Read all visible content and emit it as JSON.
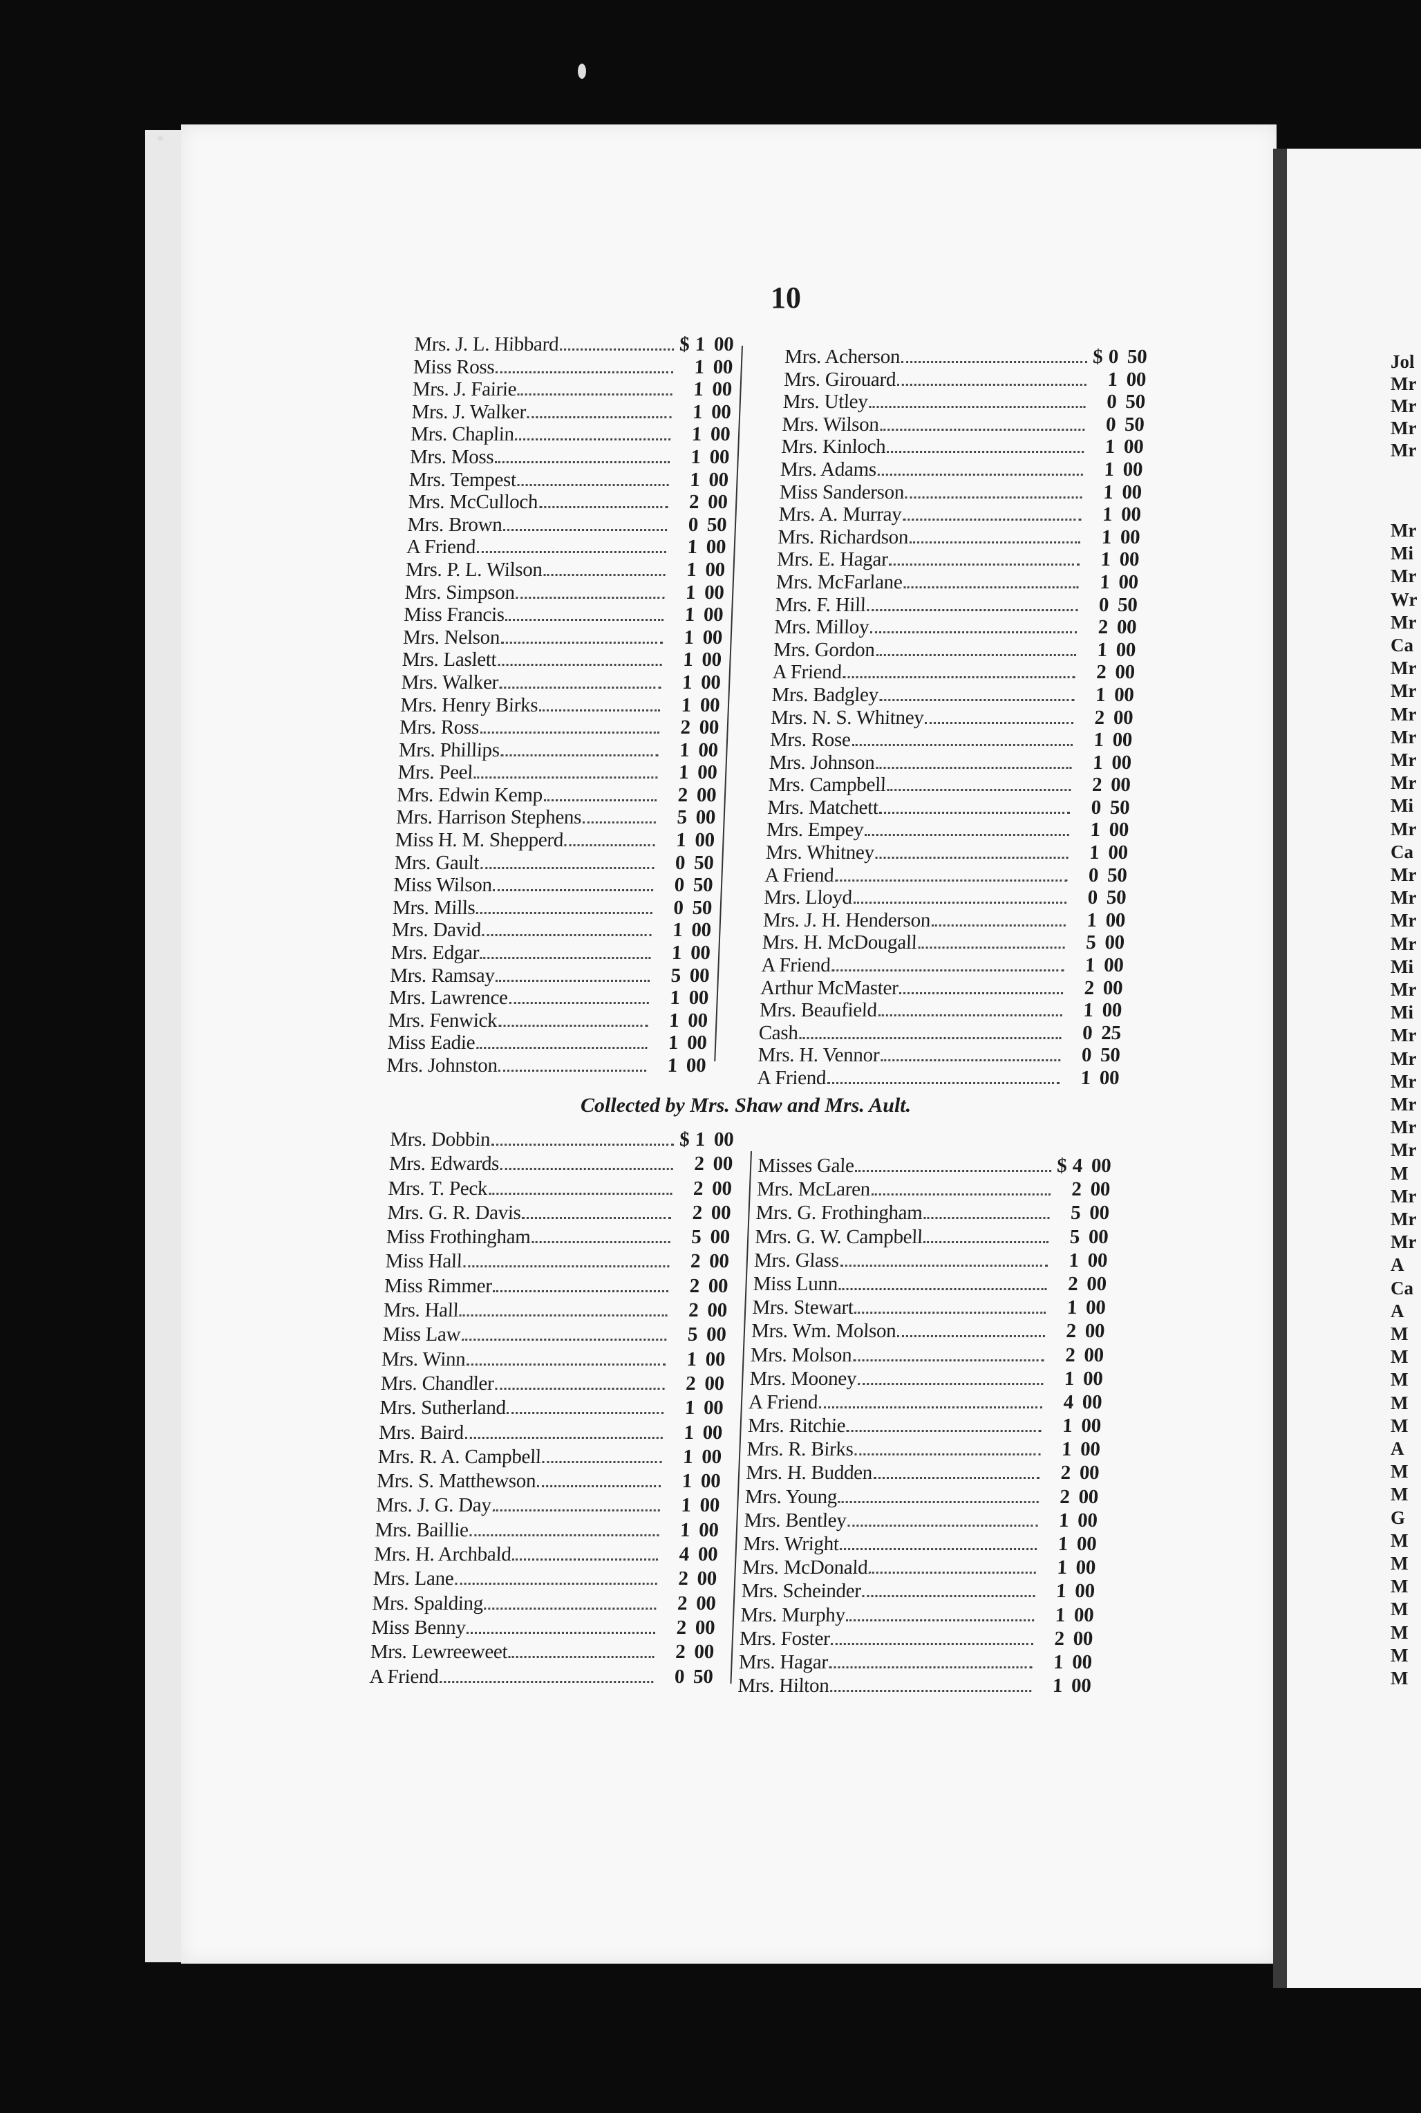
{
  "page_number": "10",
  "section1": {
    "left": [
      {
        "name": "Mrs. J. L. Hibbard",
        "cur": "$",
        "amount": "1 00"
      },
      {
        "name": "Miss Ross",
        "amount": "1 00"
      },
      {
        "name": "Mrs. J. Fairie",
        "amount": "1 00"
      },
      {
        "name": "Mrs. J. Walker",
        "amount": "1 00"
      },
      {
        "name": "Mrs. Chaplin",
        "amount": "1 00"
      },
      {
        "name": "Mrs. Moss",
        "amount": "1 00"
      },
      {
        "name": "Mrs. Tempest",
        "amount": "1 00"
      },
      {
        "name": "Mrs. McCulloch",
        "amount": "2 00"
      },
      {
        "name": "Mrs. Brown",
        "amount": "0 50"
      },
      {
        "name": "A Friend",
        "amount": "1 00"
      },
      {
        "name": "Mrs. P. L. Wilson",
        "amount": "1 00"
      },
      {
        "name": "Mrs. Simpson",
        "amount": "1 00"
      },
      {
        "name": "Miss Francis",
        "amount": "1 00"
      },
      {
        "name": "Mrs. Nelson",
        "amount": "1 00"
      },
      {
        "name": "Mrs. Laslett",
        "amount": "1 00"
      },
      {
        "name": "Mrs. Walker",
        "amount": "1 00"
      },
      {
        "name": "Mrs. Henry Birks",
        "amount": "1 00"
      },
      {
        "name": "Mrs. Ross",
        "amount": "2 00"
      },
      {
        "name": "Mrs. Phillips",
        "amount": "1 00"
      },
      {
        "name": "Mrs. Peel",
        "amount": "1 00"
      },
      {
        "name": "Mrs. Edwin Kemp",
        "amount": "2 00"
      },
      {
        "name": "Mrs. Harrison Stephens",
        "amount": "5 00"
      },
      {
        "name": "Miss H. M. Shepperd",
        "amount": "1 00"
      },
      {
        "name": "Mrs. Gault",
        "amount": "0 50"
      },
      {
        "name": "Miss Wilson",
        "amount": "0 50"
      },
      {
        "name": "Mrs. Mills",
        "amount": "0 50"
      },
      {
        "name": "Mrs. David",
        "amount": "1 00"
      },
      {
        "name": "Mrs. Edgar",
        "amount": "1 00"
      },
      {
        "name": "Mrs. Ramsay",
        "amount": "5 00"
      },
      {
        "name": "Mrs. Lawrence",
        "amount": "1 00"
      },
      {
        "name": "Mrs. Fenwick",
        "amount": "1 00"
      },
      {
        "name": "Miss Eadie",
        "amount": "1 00"
      },
      {
        "name": "Mrs. Johnston",
        "amount": "1 00"
      }
    ],
    "right": [
      {
        "name": "Mrs. Acherson",
        "cur": "$",
        "amount": "0 50"
      },
      {
        "name": "Mrs. Girouard",
        "amount": "1 00"
      },
      {
        "name": "Mrs. Utley",
        "amount": "0 50"
      },
      {
        "name": "Mrs. Wilson",
        "amount": "0 50"
      },
      {
        "name": "Mrs. Kinloch",
        "amount": "1 00"
      },
      {
        "name": "Mrs. Adams",
        "amount": "1 00"
      },
      {
        "name": "Miss Sanderson",
        "amount": "1 00"
      },
      {
        "name": "Mrs. A. Murray",
        "amount": "1 00"
      },
      {
        "name": "Mrs. Richardson",
        "amount": "1 00"
      },
      {
        "name": "Mrs. E. Hagar",
        "amount": "1 00"
      },
      {
        "name": "Mrs. McFarlane",
        "amount": "1 00"
      },
      {
        "name": "Mrs. F. Hill",
        "amount": "0 50"
      },
      {
        "name": "Mrs. Milloy",
        "amount": "2 00"
      },
      {
        "name": "Mrs. Gordon",
        "amount": "1 00"
      },
      {
        "name": "A Friend",
        "amount": "2 00"
      },
      {
        "name": "Mrs. Badgley",
        "amount": "1 00"
      },
      {
        "name": "Mrs. N. S. Whitney",
        "amount": "2 00"
      },
      {
        "name": "Mrs. Rose",
        "amount": "1 00"
      },
      {
        "name": "Mrs. Johnson",
        "amount": "1 00"
      },
      {
        "name": "Mrs. Campbell",
        "amount": "2 00"
      },
      {
        "name": "Mrs. Matchett",
        "amount": "0 50"
      },
      {
        "name": "Mrs. Empey",
        "amount": "1 00"
      },
      {
        "name": "Mrs. Whitney",
        "amount": "1 00"
      },
      {
        "name": "A Friend",
        "amount": "0 50"
      },
      {
        "name": "Mrs. Lloyd",
        "amount": "0 50"
      },
      {
        "name": "Mrs. J. H. Henderson",
        "amount": "1 00"
      },
      {
        "name": "Mrs. H. McDougall",
        "amount": "5 00"
      },
      {
        "name": "A Friend",
        "amount": "1 00"
      },
      {
        "name": "Arthur McMaster",
        "amount": "2 00"
      },
      {
        "name": "Mrs. Beaufield",
        "amount": "1 00"
      },
      {
        "name": "Cash",
        "amount": "0 25"
      },
      {
        "name": "Mrs. H. Vennor",
        "amount": "0 50"
      },
      {
        "name": "A Friend",
        "amount": "1 00"
      }
    ]
  },
  "section2": {
    "heading": "Collected by Mrs. Shaw and Mrs. Ault.",
    "left": [
      {
        "name": "Mrs. Dobbin",
        "cur": "$",
        "amount": "1 00"
      },
      {
        "name": "Mrs. Edwards",
        "amount": "2 00"
      },
      {
        "name": "Mrs. T. Peck",
        "amount": "2 00"
      },
      {
        "name": "Mrs. G. R. Davis",
        "amount": "2 00"
      },
      {
        "name": "Miss Frothingham",
        "amount": "5 00"
      },
      {
        "name": "Miss Hall",
        "amount": "2 00"
      },
      {
        "name": "Miss Rimmer",
        "amount": "2 00"
      },
      {
        "name": "Mrs. Hall",
        "amount": "2 00"
      },
      {
        "name": "Miss Law",
        "amount": "5 00"
      },
      {
        "name": "Mrs. Winn",
        "amount": "1 00"
      },
      {
        "name": "Mrs. Chandler",
        "amount": "2 00"
      },
      {
        "name": "Mrs. Sutherland",
        "amount": "1 00"
      },
      {
        "name": "Mrs. Baird",
        "amount": "1 00"
      },
      {
        "name": "Mrs. R. A. Campbell",
        "amount": "1 00"
      },
      {
        "name": "Mrs. S. Matthewson",
        "amount": "1 00"
      },
      {
        "name": "Mrs. J. G. Day",
        "amount": "1 00"
      },
      {
        "name": "Mrs. Baillie",
        "amount": "1 00"
      },
      {
        "name": "Mrs. H. Archbald",
        "amount": "4 00"
      },
      {
        "name": "Mrs. Lane",
        "amount": "2 00"
      },
      {
        "name": "Mrs. Spalding",
        "amount": "2 00"
      },
      {
        "name": "Miss Benny",
        "amount": "2 00"
      },
      {
        "name": "Mrs. Lewreeweet",
        "amount": "2 00"
      },
      {
        "name": "A Friend",
        "amount": "0 50"
      }
    ],
    "right": [
      {
        "name": "Misses Gale",
        "cur": "$",
        "amount": "4 00"
      },
      {
        "name": "Mrs. McLaren",
        "amount": "2 00"
      },
      {
        "name": "Mrs. G. Frothingham",
        "amount": "5 00"
      },
      {
        "name": "Mrs. G. W. Campbell",
        "amount": "5 00"
      },
      {
        "name": "Mrs. Glass",
        "amount": "1 00"
      },
      {
        "name": "Miss Lunn",
        "amount": "2 00"
      },
      {
        "name": "Mrs. Stewart",
        "amount": "1 00"
      },
      {
        "name": "Mrs. Wm. Molson",
        "amount": "2 00"
      },
      {
        "name": "Mrs. Molson",
        "amount": "2 00"
      },
      {
        "name": "Mrs. Mooney",
        "amount": "1 00"
      },
      {
        "name": "A Friend",
        "amount": "4 00"
      },
      {
        "name": "Mrs. Ritchie",
        "amount": "1 00"
      },
      {
        "name": "Mrs. R. Birks",
        "amount": "1 00"
      },
      {
        "name": "Mrs. H. Budden",
        "amount": "2 00"
      },
      {
        "name": "Mrs. Young",
        "amount": "2 00"
      },
      {
        "name": "Mrs. Bentley",
        "amount": "1 00"
      },
      {
        "name": "Mrs. Wright",
        "amount": "1 00"
      },
      {
        "name": "Mrs. McDonald",
        "amount": "1 00"
      },
      {
        "name": "Mrs. Scheinder",
        "amount": "1 00"
      },
      {
        "name": "Mrs. Murphy",
        "amount": "1 00"
      },
      {
        "name": "Mrs. Foster",
        "amount": "2 00"
      },
      {
        "name": "Mrs. Hagar",
        "amount": "1 00"
      },
      {
        "name": "Mrs. Hilton",
        "amount": "1 00"
      }
    ]
  },
  "facing_page": {
    "top_fragments": [
      "Jol",
      "Mr",
      "Mr",
      "Mr",
      "Mr"
    ],
    "fragments": [
      "Mr",
      "Mi",
      "Mr",
      "Wr",
      "Mr",
      "Ca",
      "Mr",
      "Mr",
      "Mr",
      "Mr",
      "Mr",
      "Mr",
      "Mi",
      "Mr",
      "Ca",
      "Mr",
      "Mr",
      "Mr",
      "Mr",
      "Mi",
      "Mr",
      "Mi",
      "Mr",
      "Mr",
      "Mr",
      "Mr",
      "Mr",
      "Mr",
      "M",
      "Mr",
      "Mr",
      "Mr",
      "A",
      "Ca",
      "A",
      "M",
      "M",
      "M",
      "M",
      "M",
      "A",
      "M",
      "M",
      "G",
      "M",
      "M",
      "M",
      "M",
      "M",
      "M",
      "M"
    ]
  }
}
